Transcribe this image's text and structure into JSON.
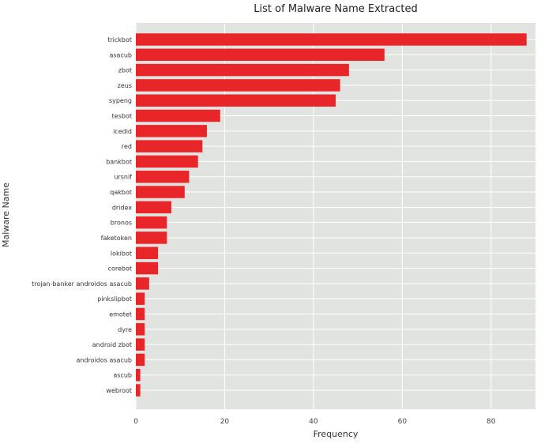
{
  "chart_data": {
    "type": "bar",
    "orientation": "horizontal",
    "title": "List of Malware Name Extracted",
    "xlabel": "Frequency",
    "ylabel": "Malware Name",
    "xlim": [
      0,
      90
    ],
    "xticks": [
      0,
      20,
      40,
      60,
      80
    ],
    "grid": true,
    "bar_color": "#e8262a",
    "background_color": "#e1e3e0",
    "categories": [
      "trickbot",
      "asacub",
      "zbot",
      "zeus",
      "sypeng",
      "tesbot",
      "icedid",
      "red",
      "bankbot",
      "ursnif",
      "qakbot",
      "dridex",
      "bronos",
      "faketoken",
      "lokibot",
      "corebot",
      "trojan-banker androidos asacub",
      "pinkslipbot",
      "emotet",
      "dyre",
      "android zbot",
      "androidos asacub",
      "ascub",
      "webroot"
    ],
    "values": [
      88,
      56,
      48,
      46,
      45,
      19,
      16,
      15,
      14,
      12,
      11,
      8,
      7,
      7,
      5,
      5,
      3,
      2,
      2,
      2,
      2,
      2,
      1,
      1
    ]
  }
}
